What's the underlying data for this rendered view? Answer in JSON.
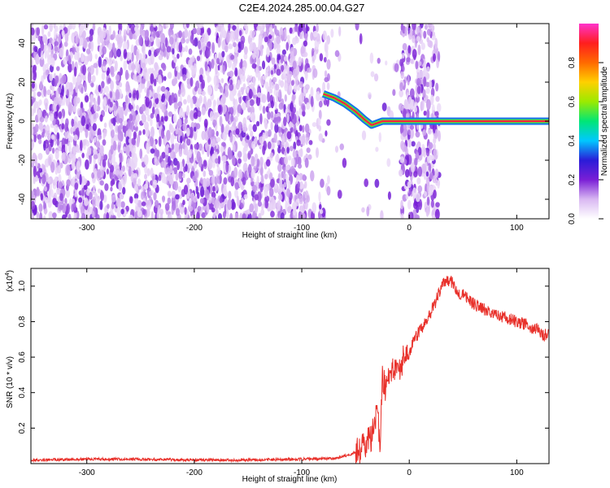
{
  "title": "C2E4.2024.285.00.04.G27",
  "chart_data": [
    {
      "type": "heatmap",
      "xlabel": "Height of straight line (km)",
      "ylabel": "Frequency (Hz)",
      "xlim": [
        -352,
        130
      ],
      "ylim": [
        -50,
        50
      ],
      "xticks": [
        -300,
        -200,
        -100,
        0,
        100
      ],
      "yticks": [
        -40,
        -20,
        0,
        20,
        40
      ],
      "colorbar": {
        "label": "Normalized spectral amplitude",
        "range": [
          0,
          1
        ],
        "ticks": [
          0.0,
          0.2,
          0.4,
          0.6,
          0.8
        ],
        "colormap": [
          "#ffffff",
          "#d9b8f2",
          "#7a1fd6",
          "#2a1cd8",
          "#00c8ff",
          "#00e676",
          "#9bea00",
          "#ffd000",
          "#ff6a00",
          "#ff1e1e",
          "#ff33cc"
        ]
      },
      "ridge": [
        {
          "x": -80,
          "y": 14
        },
        {
          "x": -70,
          "y": 12
        },
        {
          "x": -60,
          "y": 9
        },
        {
          "x": -50,
          "y": 5
        },
        {
          "x": -42,
          "y": 1
        },
        {
          "x": -35,
          "y": -2
        },
        {
          "x": -25,
          "y": 0
        },
        {
          "x": -12,
          "y": 0
        },
        {
          "x": 30,
          "y": 0
        },
        {
          "x": 130,
          "y": 0
        }
      ]
    },
    {
      "type": "line",
      "xlabel": "Height of straight line (km)",
      "ylabel": "SNR (10 * v/v)",
      "y_multiplier": "(x10",
      "y_multiplier_exp": "4",
      "y_multiplier_close": ")",
      "xlim": [
        -352,
        130
      ],
      "ylim": [
        0,
        1.1
      ],
      "xticks": [
        -300,
        -200,
        -100,
        0,
        100
      ],
      "yticks": [
        0.2,
        0.4,
        0.6,
        0.8,
        1.0
      ],
      "color": "#e8302a",
      "series": [
        {
          "x": [
            -352,
            -300,
            -250,
            -200,
            -150,
            -100,
            -70,
            -55,
            -45,
            -40,
            -35,
            -30,
            -27,
            -25,
            -22,
            -20,
            -15,
            -10,
            -5,
            0,
            5,
            10,
            15,
            20,
            25,
            30,
            35,
            40,
            45,
            50,
            60,
            70,
            80,
            90,
            100,
            110,
            120,
            125,
            130
          ],
          "y": [
            0.02,
            0.025,
            0.025,
            0.02,
            0.02,
            0.025,
            0.03,
            0.05,
            0.08,
            0.12,
            0.15,
            0.3,
            0.1,
            0.5,
            0.42,
            0.48,
            0.55,
            0.52,
            0.6,
            0.63,
            0.7,
            0.75,
            0.8,
            0.85,
            0.92,
            1.0,
            1.04,
            1.02,
            0.97,
            0.95,
            0.9,
            0.87,
            0.85,
            0.82,
            0.8,
            0.78,
            0.75,
            0.72,
            0.74
          ]
        }
      ]
    }
  ]
}
